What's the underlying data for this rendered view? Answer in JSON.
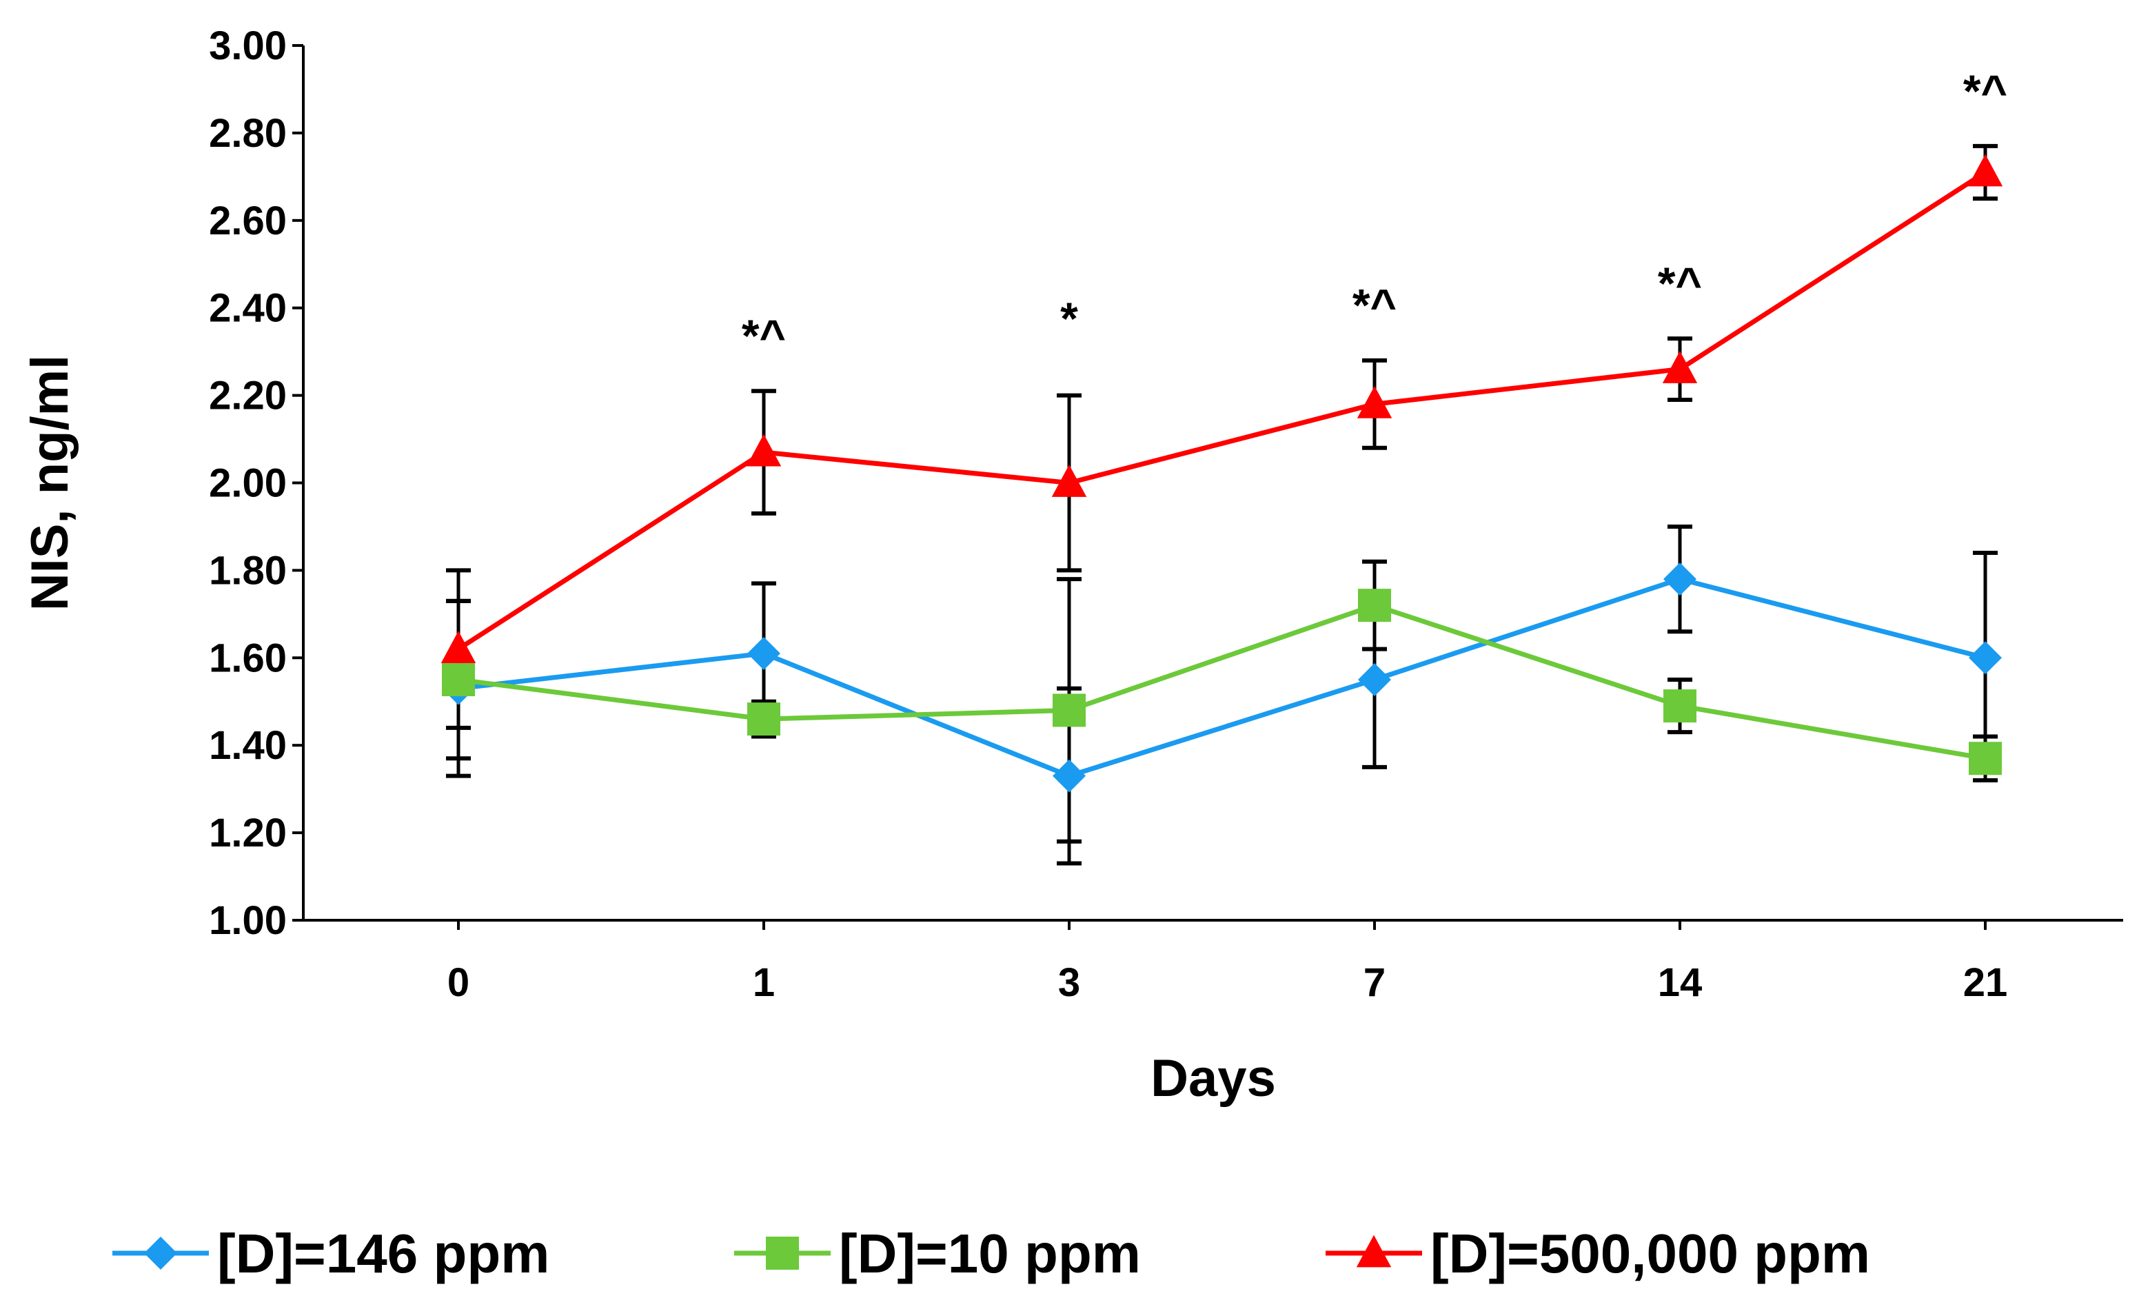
{
  "chart_data": {
    "type": "line",
    "title": "",
    "xlabel": "Days",
    "ylabel": "NIS, ng/ml",
    "categories": [
      "0",
      "1",
      "3",
      "7",
      "14",
      "21"
    ],
    "ylim": [
      1.0,
      3.0
    ],
    "yticks": [
      "1.00",
      "1.20",
      "1.40",
      "1.60",
      "1.80",
      "2.00",
      "2.20",
      "2.40",
      "2.60",
      "2.80",
      "3.00"
    ],
    "grid": false,
    "legend_position": "bottom",
    "series": [
      {
        "name": "[D]=146 ppm",
        "color": "#1a9bf0",
        "marker": "diamond",
        "values": [
          1.53,
          1.61,
          1.33,
          1.55,
          1.78,
          1.6
        ],
        "errors": [
          0.2,
          0.16,
          0.2,
          0.2,
          0.12,
          0.24
        ]
      },
      {
        "name": "[D]=10 ppm",
        "color": "#6cc93a",
        "marker": "square",
        "values": [
          1.55,
          1.46,
          1.48,
          1.72,
          1.49,
          1.37
        ],
        "errors": [
          0.18,
          0.04,
          0.3,
          0.1,
          0.06,
          0.05
        ]
      },
      {
        "name": "[D]=500,000 ppm",
        "color": "#ff0000",
        "marker": "triangle",
        "values": [
          1.62,
          2.07,
          2.0,
          2.18,
          2.26,
          2.71
        ],
        "errors": [
          0.18,
          0.14,
          0.2,
          0.1,
          0.07,
          0.06
        ]
      }
    ],
    "annotations": [
      {
        "category": "1",
        "text": "*^",
        "y": 2.3
      },
      {
        "category": "3",
        "text": "*",
        "y": 2.34
      },
      {
        "category": "7",
        "text": "*^",
        "y": 2.37
      },
      {
        "category": "14",
        "text": "*^",
        "y": 2.42
      },
      {
        "category": "21",
        "text": "*^",
        "y": 2.86
      }
    ]
  }
}
